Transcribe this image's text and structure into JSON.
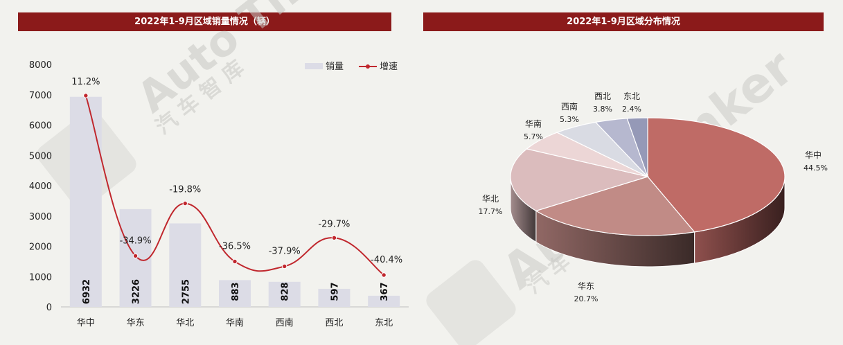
{
  "left_title": "2022年1-9月区域销量情况（辆）",
  "right_title": "2022年1-9月区域分布情况",
  "legend": {
    "bar": "销量",
    "line": "增速"
  },
  "watermark": {
    "left": "Auto Thinker",
    "left_cn": "汽 车 智 库",
    "right": "Auto Thinker",
    "right_cn": "汽 车 智 库"
  },
  "colors": {
    "title_bar": "#8b1a1a",
    "bar": "#dcdce6",
    "line": "#c0272d",
    "background": "#f2f2ee"
  },
  "chart_data": [
    {
      "type": "bar",
      "categories": [
        "华中",
        "华东",
        "华北",
        "华南",
        "西南",
        "西北",
        "东北"
      ],
      "ylim": [
        0,
        8000
      ],
      "yticks": [
        0,
        1000,
        2000,
        3000,
        4000,
        5000,
        6000,
        7000,
        8000
      ],
      "series": [
        {
          "name": "销量",
          "type": "bar",
          "values": [
            6932,
            3226,
            2755,
            883,
            828,
            597,
            367
          ]
        },
        {
          "name": "增速",
          "type": "line",
          "values": [
            11.2,
            -34.9,
            -19.8,
            -36.5,
            -37.9,
            -29.7,
            -40.4
          ],
          "labels": [
            "11.2%",
            "-34.9%",
            "-19.8%",
            "-36.5%",
            "-37.9%",
            "-29.7%",
            "-40.4%"
          ]
        }
      ],
      "legend": "top-right",
      "grid": false
    },
    {
      "type": "pie",
      "title": "2022年1-9月区域分布情况",
      "categories": [
        "华中",
        "华东",
        "华北",
        "华南",
        "西南",
        "西北",
        "东北"
      ],
      "values": [
        44.5,
        20.7,
        17.7,
        5.7,
        5.3,
        3.8,
        2.4
      ],
      "labels": [
        "44.5%",
        "20.7%",
        "17.7%",
        "5.7%",
        "5.3%",
        "3.8%",
        "2.4%"
      ],
      "colors": [
        "#bf6b66",
        "#c18b86",
        "#dbbcbd",
        "#ecd6d6",
        "#d9dbe3",
        "#b6b8cf",
        "#9599b7"
      ]
    }
  ]
}
